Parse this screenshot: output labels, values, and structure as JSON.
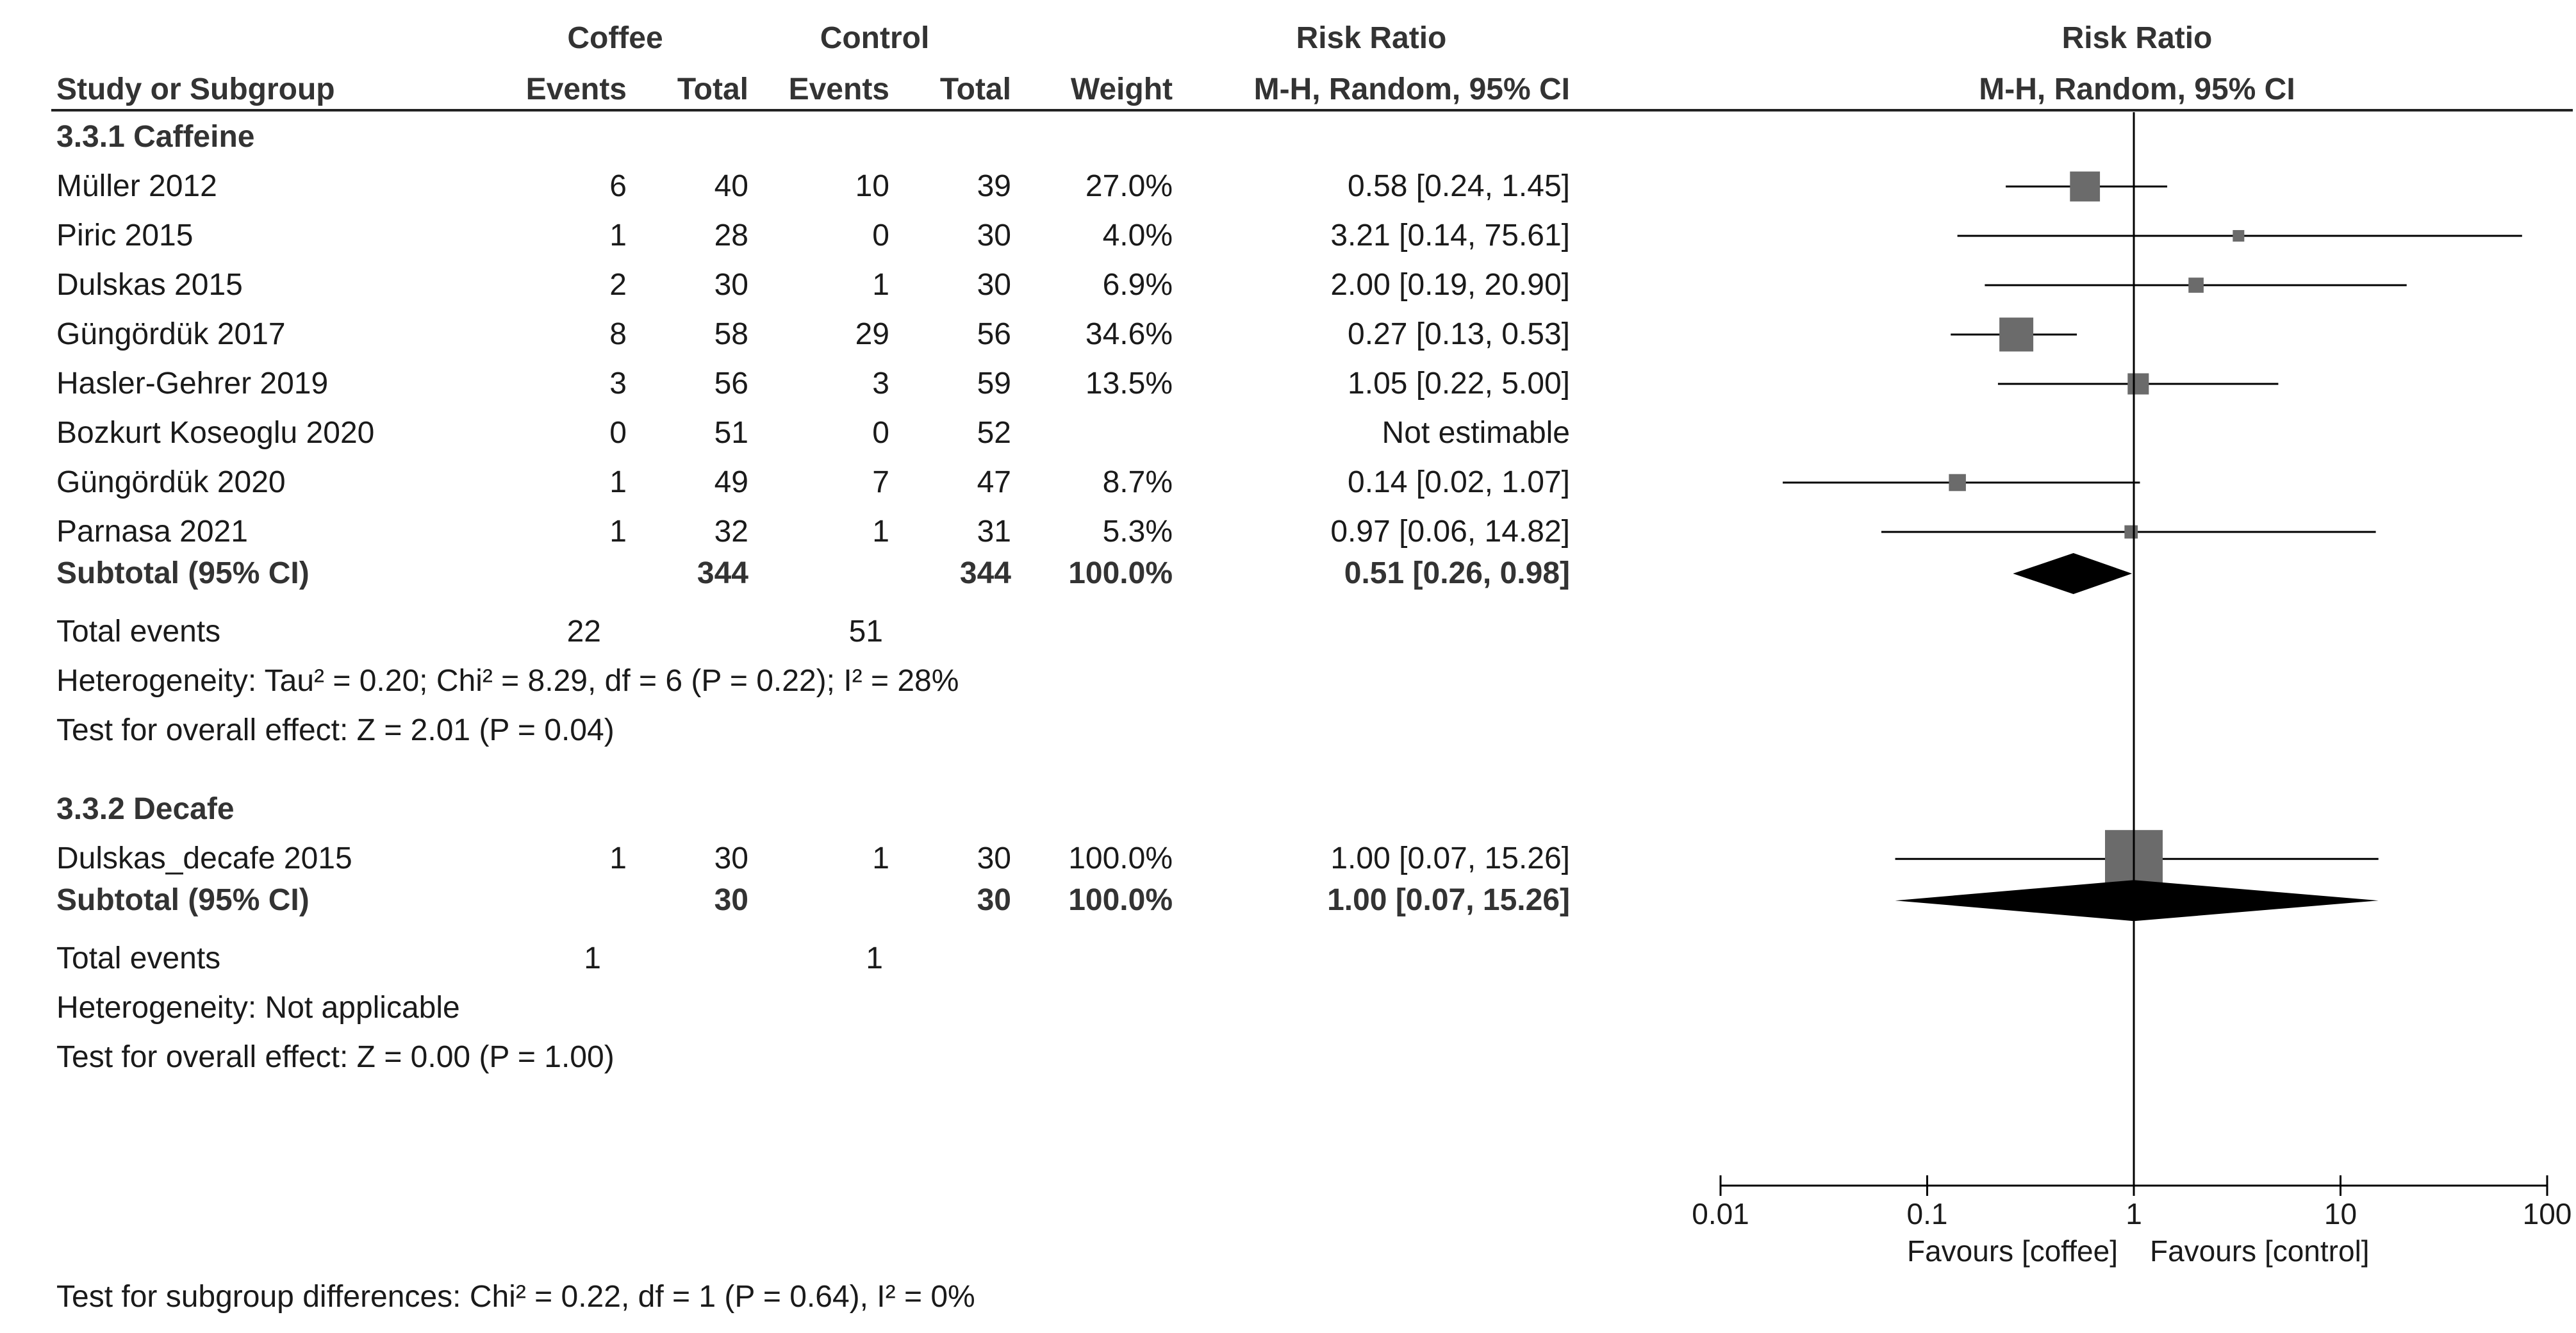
{
  "chart_data": {
    "type": "forest",
    "header": {
      "group1": "Coffee",
      "group2": "Control",
      "rr_col": "Risk Ratio",
      "rr_method": "M-H, Random, 95% CI",
      "plot_title": "Risk Ratio",
      "plot_method": "M-H, Random, 95% CI",
      "study_col": "Study or Subgroup",
      "events": "Events",
      "total": "Total",
      "weight": "Weight"
    },
    "subgroups": [
      {
        "title": "3.3.1 Caffeine",
        "studies": [
          {
            "name": "Müller 2012",
            "e1": "6",
            "t1": "40",
            "e2": "10",
            "t2": "39",
            "weight": "27.0%",
            "ci_text": "0.58 [0.24, 1.45]",
            "rr": 0.58,
            "lo": 0.24,
            "hi": 1.45,
            "w": 27.0
          },
          {
            "name": "Piric 2015",
            "e1": "1",
            "t1": "28",
            "e2": "0",
            "t2": "30",
            "weight": "4.0%",
            "ci_text": "3.21 [0.14, 75.61]",
            "rr": 3.21,
            "lo": 0.14,
            "hi": 75.61,
            "w": 4.0
          },
          {
            "name": "Dulskas 2015",
            "e1": "2",
            "t1": "30",
            "e2": "1",
            "t2": "30",
            "weight": "6.9%",
            "ci_text": "2.00 [0.19, 20.90]",
            "rr": 2.0,
            "lo": 0.19,
            "hi": 20.9,
            "w": 6.9
          },
          {
            "name": "Güngördük 2017",
            "e1": "8",
            "t1": "58",
            "e2": "29",
            "t2": "56",
            "weight": "34.6%",
            "ci_text": "0.27 [0.13, 0.53]",
            "rr": 0.27,
            "lo": 0.13,
            "hi": 0.53,
            "w": 34.6
          },
          {
            "name": "Hasler-Gehrer 2019",
            "e1": "3",
            "t1": "56",
            "e2": "3",
            "t2": "59",
            "weight": "13.5%",
            "ci_text": "1.05 [0.22, 5.00]",
            "rr": 1.05,
            "lo": 0.22,
            "hi": 5.0,
            "w": 13.5
          },
          {
            "name": "Bozkurt Koseoglu 2020",
            "e1": "0",
            "t1": "51",
            "e2": "0",
            "t2": "52",
            "weight": "",
            "ci_text": "Not estimable",
            "rr": null,
            "lo": null,
            "hi": null,
            "w": 0
          },
          {
            "name": "Güngördük 2020",
            "e1": "1",
            "t1": "49",
            "e2": "7",
            "t2": "47",
            "weight": "8.7%",
            "ci_text": "0.14 [0.02, 1.07]",
            "rr": 0.14,
            "lo": 0.02,
            "hi": 1.07,
            "w": 8.7
          },
          {
            "name": "Parnasa 2021",
            "e1": "1",
            "t1": "32",
            "e2": "1",
            "t2": "31",
            "weight": "5.3%",
            "ci_text": "0.97 [0.06, 14.82]",
            "rr": 0.97,
            "lo": 0.06,
            "hi": 14.82,
            "w": 5.3
          }
        ],
        "subtotal": {
          "label": "Subtotal (95% CI)",
          "t1": "344",
          "t2": "344",
          "weight": "100.0%",
          "ci_text": "0.51 [0.26, 0.98]",
          "rr": 0.51,
          "lo": 0.26,
          "hi": 0.98
        },
        "total_events": {
          "label": "Total events",
          "e1": "22",
          "e2": "51"
        },
        "heterogeneity": "Heterogeneity: Tau² = 0.20; Chi² = 8.29, df = 6 (P = 0.22); I² = 28%",
        "overall": "Test for overall effect: Z = 2.01 (P = 0.04)"
      },
      {
        "title": "3.3.2 Decafe",
        "studies": [
          {
            "name": "Dulskas_decafe 2015",
            "e1": "1",
            "t1": "30",
            "e2": "1",
            "t2": "30",
            "weight": "100.0%",
            "ci_text": "1.00 [0.07, 15.26]",
            "rr": 1.0,
            "lo": 0.07,
            "hi": 15.26,
            "w": 100.0
          }
        ],
        "subtotal": {
          "label": "Subtotal (95% CI)",
          "t1": "30",
          "t2": "30",
          "weight": "100.0%",
          "ci_text": "1.00 [0.07, 15.26]",
          "rr": 1.0,
          "lo": 0.07,
          "hi": 15.26
        },
        "total_events": {
          "label": "Total events",
          "e1": "1",
          "e2": "1"
        },
        "heterogeneity": "Heterogeneity: Not applicable",
        "overall": "Test for overall effect: Z = 0.00 (P = 1.00)"
      }
    ],
    "subgroup_test": "Test for subgroup differences: Chi² = 0.22, df = 1 (P = 0.64), I² = 0%",
    "axis": {
      "scale": "log",
      "range": [
        0.01,
        100
      ],
      "ticks": [
        0.01,
        0.1,
        1,
        10,
        100
      ],
      "tick_labels": [
        "0.01",
        "0.1",
        "1",
        "10",
        "100"
      ],
      "favours_left": "Favours [coffee]",
      "favours_right": "Favours [control]"
    },
    "colors": {
      "marker": "#6b6b6b",
      "diamond": "#000000",
      "line": "#000000",
      "text": "#1a1a1a"
    }
  }
}
